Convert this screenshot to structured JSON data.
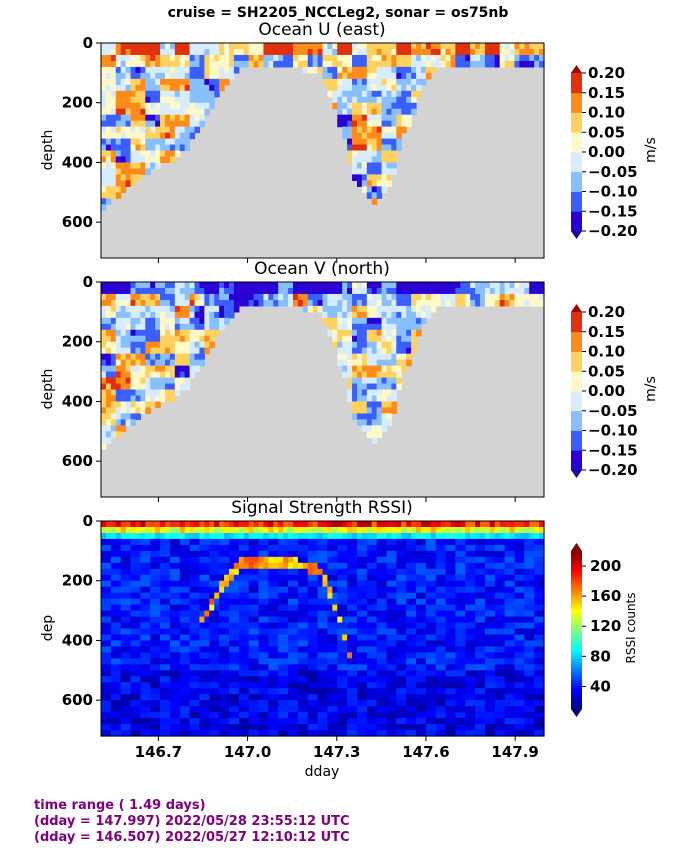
{
  "suptitle": "cruise = SH2205_NCCLeg2,  sonar = os75nb",
  "footer": {
    "line1": "time range ( 1.49 days)",
    "line2": "(dday = 147.997) 2022/05/28 23:55:12 UTC",
    "line3": "(dday = 146.507) 2022/05/27 12:10:12 UTC"
  },
  "colors": {
    "missing": "#d3d3d3",
    "footer_text": "#800080"
  },
  "chart_data": [
    {
      "type": "heatmap",
      "title": "Ocean U (east)",
      "xlabel": "",
      "ylabel": "depth",
      "xlim": [
        146.507,
        147.997
      ],
      "ylim": [
        720,
        0
      ],
      "ytick_labels": [
        "0",
        "200",
        "400",
        "600"
      ],
      "yticks": [
        0,
        200,
        400,
        600
      ],
      "xticks": [
        146.7,
        147.0,
        147.3,
        147.6,
        147.9
      ],
      "colorbar": {
        "label": "m/s",
        "range": [
          -0.2,
          0.2
        ],
        "levels": [
          -0.2,
          -0.15,
          -0.1,
          -0.05,
          0.0,
          0.05,
          0.1,
          0.15,
          0.2
        ],
        "tick_labels": [
          "−0.20",
          "−0.15",
          "−0.10",
          "−0.05",
          "0.00",
          "0.05",
          "0.10",
          "0.15",
          "0.20"
        ],
        "colors": [
          "#2a00d5",
          "#3b5fff",
          "#88c0ff",
          "#d8ecff",
          "#fff8c8",
          "#ffd15e",
          "#ff8c1a",
          "#e0300c"
        ],
        "extend": "both"
      }
    },
    {
      "type": "heatmap",
      "title": "Ocean V (north)",
      "xlabel": "",
      "ylabel": "depth",
      "xlim": [
        146.507,
        147.997
      ],
      "ylim": [
        720,
        0
      ],
      "ytick_labels": [
        "0",
        "200",
        "400",
        "600"
      ],
      "yticks": [
        0,
        200,
        400,
        600
      ],
      "xticks": [
        146.7,
        147.0,
        147.3,
        147.6,
        147.9
      ],
      "colorbar": {
        "label": "m/s",
        "range": [
          -0.2,
          0.2
        ],
        "levels": [
          -0.2,
          -0.15,
          -0.1,
          -0.05,
          0.0,
          0.05,
          0.1,
          0.15,
          0.2
        ],
        "tick_labels": [
          "−0.20",
          "−0.15",
          "−0.10",
          "−0.05",
          "0.00",
          "0.05",
          "0.10",
          "0.15",
          "0.20"
        ],
        "colors": [
          "#2a00d5",
          "#3b5fff",
          "#88c0ff",
          "#d8ecff",
          "#fff8c8",
          "#ffd15e",
          "#ff8c1a",
          "#e0300c"
        ],
        "extend": "both"
      }
    },
    {
      "type": "heatmap",
      "title": "Signal Strength RSSI)",
      "xlabel": "dday",
      "ylabel": "dep",
      "xlim": [
        146.507,
        147.997
      ],
      "ylim": [
        720,
        0
      ],
      "ytick_labels": [
        "0",
        "200",
        "400",
        "600"
      ],
      "yticks": [
        0,
        200,
        400,
        600
      ],
      "xticks": [
        146.7,
        147.0,
        147.3,
        147.6,
        147.9
      ],
      "xtick_labels": [
        "146.7",
        "147.0",
        "147.3",
        "147.6",
        "147.9"
      ],
      "colorbar": {
        "label": "RSSI counts",
        "range": [
          10,
          220
        ],
        "ticks": [
          40,
          80,
          120,
          160,
          200
        ],
        "tick_labels": [
          "40",
          "80",
          "120",
          "160",
          "200"
        ],
        "colormap": "jet",
        "extend": "both"
      }
    }
  ]
}
